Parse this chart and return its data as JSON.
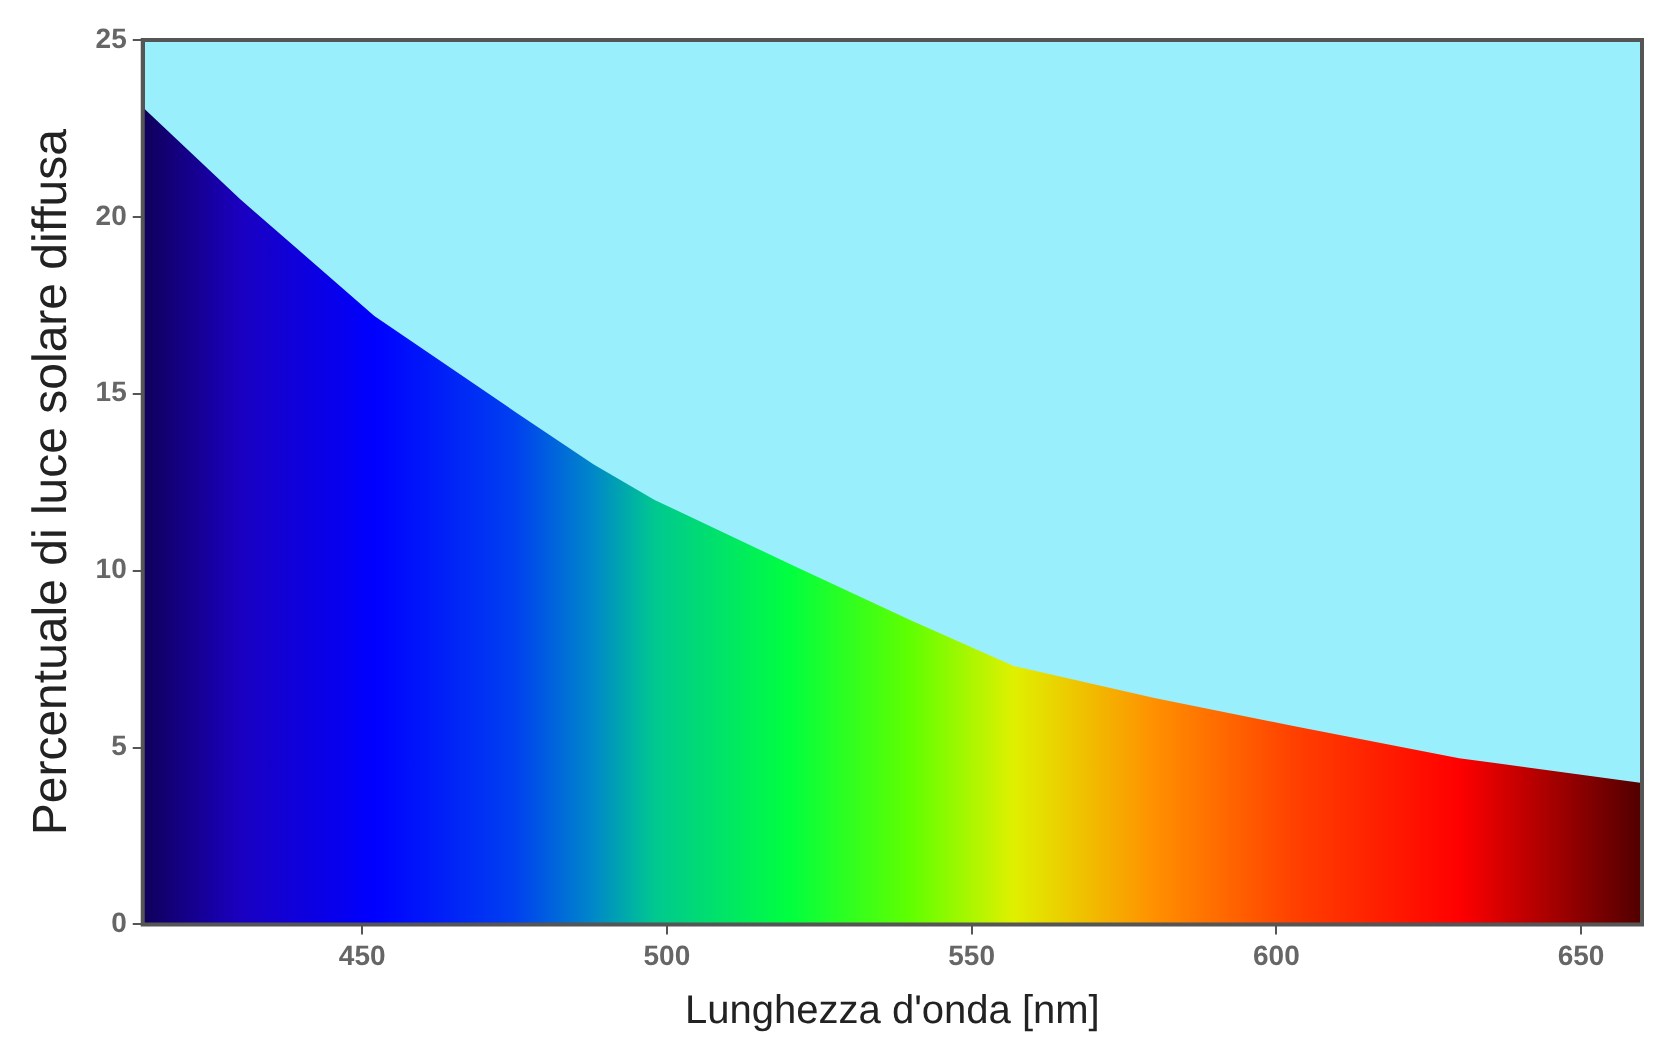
{
  "chart_data": {
    "type": "area",
    "xlabel": "Lunghezza d'onda [nm]",
    "ylabel": "Percentuale di luce solare diffusa",
    "x": [
      414,
      430,
      452,
      475,
      488,
      498,
      520,
      540,
      557,
      580,
      603,
      630,
      660
    ],
    "values": [
      23.1,
      20.5,
      17.2,
      14.5,
      13.0,
      12.0,
      10.2,
      8.6,
      7.3,
      6.4,
      5.6,
      4.7,
      4.0
    ],
    "colors": [
      "#10005a",
      "#1a00c0",
      "#0000ff",
      "#0040f0",
      "#0088c8",
      "#00c890",
      "#00ff40",
      "#60ff00",
      "#e0f000",
      "#ff9000",
      "#ff4000",
      "#ff0000",
      "#500000"
    ],
    "xlim": [
      414,
      660
    ],
    "xticks": [
      450,
      500,
      550,
      600,
      650
    ],
    "ylim": [
      0,
      25
    ],
    "yticks": [
      0,
      5,
      10,
      15,
      20,
      25
    ],
    "marker": "none"
  }
}
